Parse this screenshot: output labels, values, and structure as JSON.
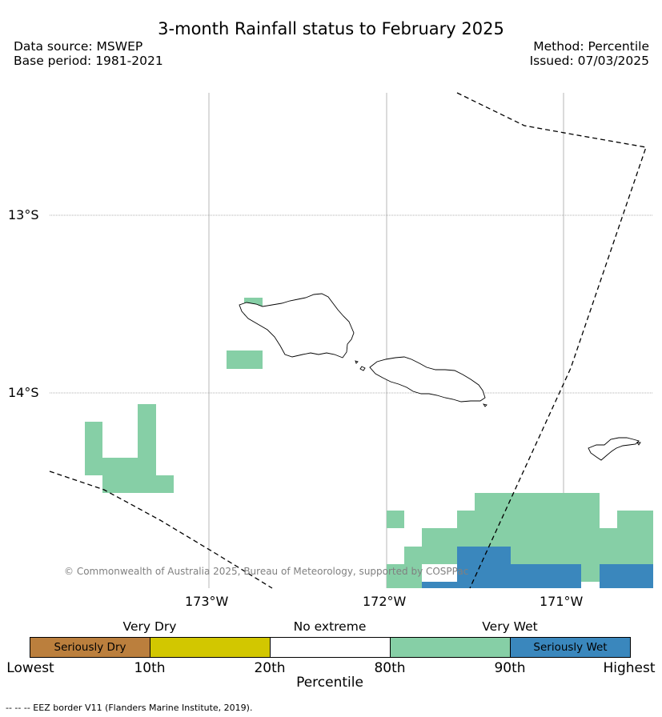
{
  "header": {
    "title": "3-month Rainfall status to February 2025",
    "data_source": "Data source: MSWEP",
    "base_period": "Base period: 1981-2021",
    "method": "Method: Percentile",
    "issued": "Issued: 07/03/2025"
  },
  "map": {
    "lat_labels": [
      "13°S",
      "14°S"
    ],
    "lon_labels": [
      "173°W",
      "172°W",
      "171°W"
    ],
    "copyright": "© Commonwealth of Australia 2025, Bureau of Meteorology, supported by COSPPac",
    "colors": {
      "very_wet": "#86cfa6",
      "seriously_wet": "#3a87bd",
      "very_dry": "#d2c700",
      "seriously_dry": "#bb7f3d",
      "no_extreme": "#ffffff"
    }
  },
  "legend": {
    "categories": [
      "Very Dry",
      "No extreme",
      "Very Wet"
    ],
    "boxes": [
      "Seriously Dry",
      "",
      "",
      "",
      "Seriously Wet"
    ],
    "ticks": [
      "Lowest",
      "10th",
      "20th",
      "80th",
      "90th",
      "Highest"
    ],
    "axis_label": "Percentile"
  },
  "footnote": "--  --  -- EEZ border V11 (Flanders Marine Institute, 2019)."
}
